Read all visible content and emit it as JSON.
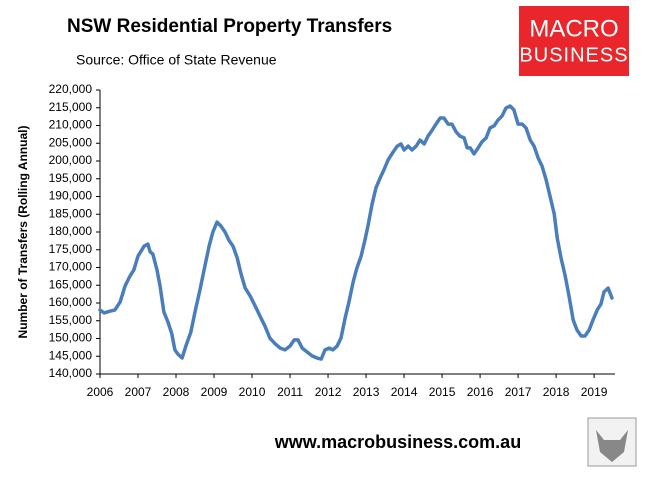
{
  "chart_data": {
    "type": "line",
    "title": "NSW Residential Property Transfers",
    "subtitle": "Source: Office of State Revenue",
    "y_label": "Number of Transfers (Rolling Annual)",
    "color": "#4a7ebb",
    "x": [
      2006.0,
      2006.11,
      2006.26,
      2006.39,
      2006.53,
      2006.66,
      2006.79,
      2006.89,
      2007.0,
      2007.16,
      2007.26,
      2007.32,
      2007.39,
      2007.5,
      2007.58,
      2007.68,
      2007.79,
      2007.89,
      2007.97,
      2008.05,
      2008.16,
      2008.26,
      2008.39,
      2008.5,
      2008.63,
      2008.76,
      2008.87,
      2008.97,
      2009.08,
      2009.18,
      2009.29,
      2009.39,
      2009.5,
      2009.61,
      2009.71,
      2009.82,
      2009.95,
      2010.08,
      2010.21,
      2010.34,
      2010.47,
      2010.61,
      2010.74,
      2010.87,
      2011.0,
      2011.11,
      2011.21,
      2011.32,
      2011.45,
      2011.58,
      2011.71,
      2011.82,
      2011.92,
      2012.03,
      2012.13,
      2012.24,
      2012.34,
      2012.45,
      2012.55,
      2012.66,
      2012.76,
      2012.87,
      2012.97,
      2013.05,
      2013.16,
      2013.26,
      2013.37,
      2013.47,
      2013.58,
      2013.68,
      2013.82,
      2013.92,
      2014.0,
      2014.11,
      2014.21,
      2014.32,
      2014.42,
      2014.53,
      2014.63,
      2014.74,
      2014.84,
      2014.95,
      2015.05,
      2015.16,
      2015.26,
      2015.37,
      2015.47,
      2015.58,
      2015.66,
      2015.74,
      2015.84,
      2015.95,
      2016.05,
      2016.16,
      2016.26,
      2016.37,
      2016.47,
      2016.58,
      2016.68,
      2016.79,
      2016.89,
      2017.0,
      2017.11,
      2017.21,
      2017.32,
      2017.42,
      2017.53,
      2017.63,
      2017.74,
      2017.84,
      2017.95,
      2018.03,
      2018.13,
      2018.24,
      2018.34,
      2018.45,
      2018.55,
      2018.66,
      2018.76,
      2018.87,
      2018.97,
      2019.08,
      2019.18,
      2019.26,
      2019.37,
      2019.47
    ],
    "values": [
      158000,
      157200,
      157700,
      158000,
      160300,
      164800,
      167600,
      169300,
      173200,
      176000,
      176600,
      174400,
      173800,
      169300,
      164800,
      157500,
      154600,
      151300,
      146800,
      145600,
      144500,
      147900,
      151800,
      157500,
      163700,
      170400,
      176000,
      180000,
      182800,
      181700,
      180000,
      177700,
      176000,
      172700,
      168200,
      164200,
      162000,
      159200,
      156300,
      153500,
      150100,
      148500,
      147300,
      146800,
      147900,
      149600,
      149600,
      147300,
      146200,
      145100,
      144500,
      144200,
      146800,
      147300,
      146800,
      147900,
      150100,
      155800,
      160300,
      165900,
      169900,
      173200,
      177700,
      181700,
      187900,
      192400,
      195200,
      197500,
      200300,
      202000,
      204200,
      204800,
      203100,
      204200,
      203100,
      204200,
      205900,
      204800,
      207000,
      208700,
      210400,
      212100,
      212100,
      210400,
      210400,
      208200,
      207000,
      206500,
      203700,
      203700,
      202000,
      203700,
      205400,
      206500,
      209300,
      209900,
      211500,
      212700,
      214900,
      215500,
      214400,
      210400,
      210400,
      209300,
      205900,
      204200,
      200800,
      198600,
      194600,
      190100,
      185100,
      178300,
      172700,
      167600,
      162000,
      155200,
      152400,
      150700,
      150700,
      152400,
      155200,
      158000,
      159700,
      163100,
      164200,
      161400
    ],
    "xlim": [
      2006,
      2019.55
    ],
    "xticks": [
      2006,
      2007,
      2008,
      2009,
      2010,
      2011,
      2012,
      2013,
      2014,
      2015,
      2016,
      2017,
      2018,
      2019
    ],
    "ylim": [
      140000,
      220000
    ],
    "yticks": [
      {
        "value": 140000,
        "label": "140,000"
      },
      {
        "value": 145000,
        "label": "145,000"
      },
      {
        "value": 150000,
        "label": "150,000"
      },
      {
        "value": 155000,
        "label": "155,000"
      },
      {
        "value": 160000,
        "label": "160,000"
      },
      {
        "value": 165000,
        "label": "165,000"
      },
      {
        "value": 170000,
        "label": "170,000"
      },
      {
        "value": 175000,
        "label": "175,000"
      },
      {
        "value": 180000,
        "label": "180,000"
      },
      {
        "value": 185000,
        "label": "185,000"
      },
      {
        "value": 190000,
        "label": "190,000"
      },
      {
        "value": 195000,
        "label": "195,000"
      },
      {
        "value": 200000,
        "label": "200,000"
      },
      {
        "value": 205000,
        "label": "205,000"
      },
      {
        "value": 210000,
        "label": "210,000"
      },
      {
        "value": 215000,
        "label": "215,000"
      },
      {
        "value": 220000,
        "label": "220,000"
      }
    ],
    "grid": false
  },
  "logo": {
    "line1": "MACRO",
    "line2": "BUSINESS"
  },
  "footer": "www.macrobusiness.com.au"
}
